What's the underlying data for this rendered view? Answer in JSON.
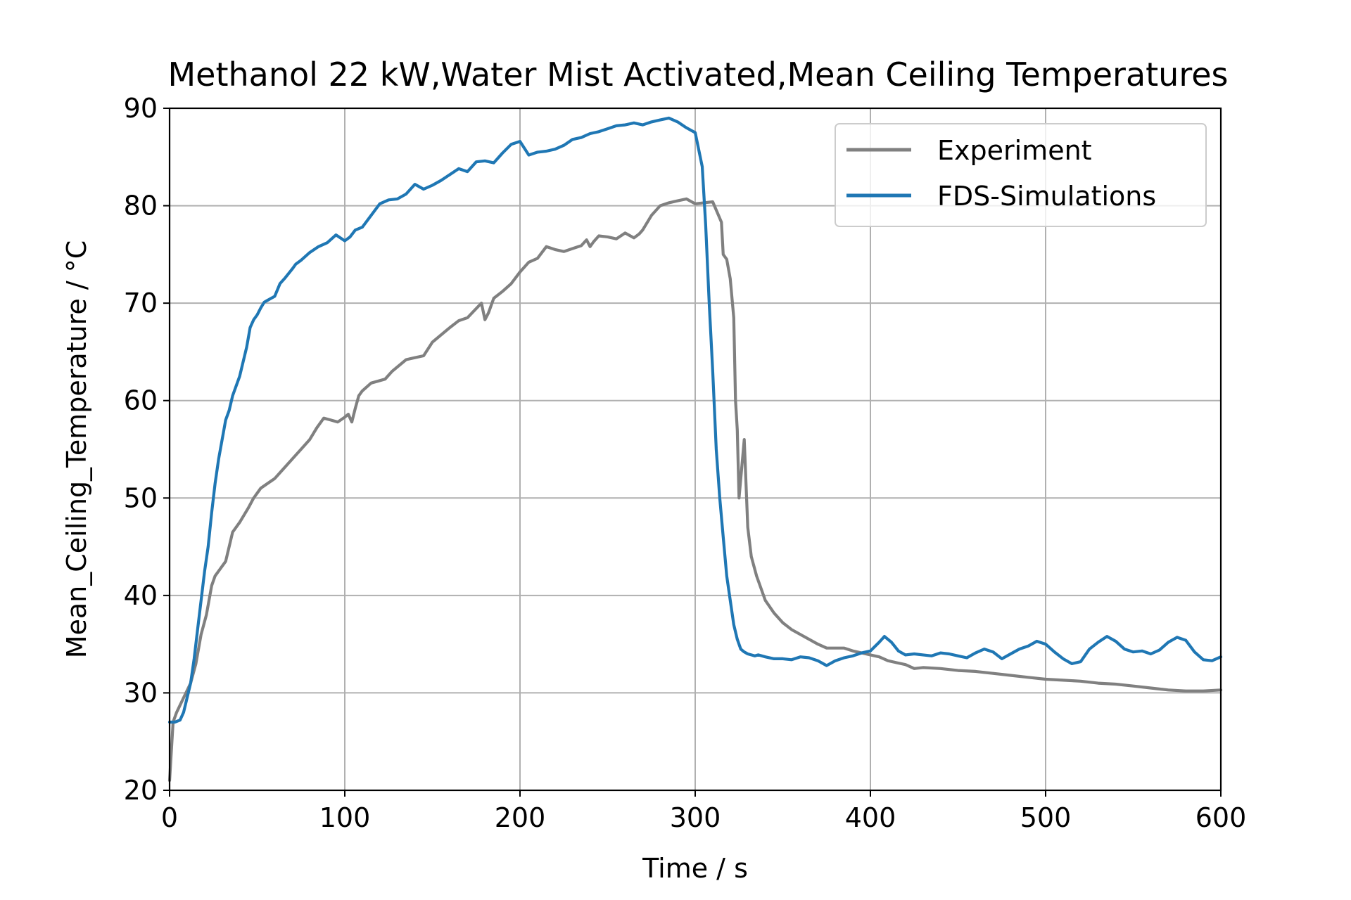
{
  "chart_data": {
    "type": "line",
    "title": "Methanol 22 kW,Water Mist Activated,Mean Ceiling Temperatures",
    "xlabel": "Time / s",
    "ylabel": "Mean_Ceiling_Temperature / °C",
    "xlim": [
      0,
      600
    ],
    "ylim": [
      20,
      90
    ],
    "xticks": [
      0,
      100,
      200,
      300,
      400,
      500,
      600
    ],
    "yticks": [
      20,
      30,
      40,
      50,
      60,
      70,
      80,
      90
    ],
    "xtick_labels": [
      "0",
      "100",
      "200",
      "300",
      "400",
      "500",
      "600"
    ],
    "ytick_labels": [
      "20",
      "30",
      "40",
      "50",
      "60",
      "70",
      "80",
      "90"
    ],
    "grid": true,
    "legend_position": "top-right",
    "series": [
      {
        "name": "Experiment",
        "color": "#808080",
        "x": [
          0,
          2,
          4,
          8,
          12,
          15,
          18,
          21,
          24,
          26,
          28,
          32,
          36,
          40,
          45,
          48,
          52,
          56,
          60,
          65,
          70,
          75,
          80,
          84,
          88,
          92,
          96,
          100,
          102,
          104,
          106,
          108,
          110,
          115,
          123,
          127,
          135,
          140,
          145,
          150,
          160,
          165,
          170,
          178,
          180,
          182,
          185,
          190,
          195,
          200,
          205,
          210,
          215,
          220,
          225,
          230,
          235,
          238,
          240,
          242,
          245,
          250,
          255,
          260,
          265,
          268,
          270,
          275,
          280,
          285,
          290,
          295,
          300,
          305,
          310,
          315,
          316,
          318,
          320,
          322,
          323,
          324,
          325,
          328,
          330,
          332,
          335,
          340,
          345,
          350,
          355,
          360,
          365,
          370,
          375,
          380,
          385,
          390,
          395,
          400,
          405,
          410,
          415,
          420,
          425,
          430,
          440,
          450,
          460,
          470,
          480,
          490,
          500,
          510,
          520,
          530,
          540,
          550,
          560,
          570,
          580,
          590,
          600
        ],
        "y": [
          21,
          27,
          28,
          29.5,
          31,
          33,
          36,
          38,
          41,
          42,
          42.5,
          43.5,
          46.5,
          47.5,
          49,
          50,
          51,
          51.5,
          52,
          53,
          54,
          55,
          56,
          57.2,
          58.2,
          58,
          57.8,
          58.3,
          58.6,
          57.8,
          59.2,
          60.5,
          61,
          61.8,
          62.2,
          63,
          64.2,
          64.4,
          64.6,
          66,
          67.5,
          68.2,
          68.5,
          70,
          68.3,
          69,
          70.5,
          71.2,
          72,
          73.2,
          74.2,
          74.6,
          75.8,
          75.5,
          75.3,
          75.6,
          75.9,
          76.5,
          75.8,
          76.3,
          76.9,
          76.8,
          76.6,
          77.2,
          76.7,
          77.1,
          77.5,
          79,
          80,
          80.3,
          80.5,
          80.7,
          80.2,
          80.3,
          80.4,
          78.3,
          75,
          74.5,
          72.5,
          68.5,
          60,
          57,
          50,
          56,
          47,
          44,
          42,
          39.5,
          38.2,
          37.2,
          36.5,
          36,
          35.5,
          35,
          34.6,
          34.6,
          34.6,
          34.3,
          34.1,
          33.9,
          33.7,
          33.3,
          33.1,
          32.9,
          32.5,
          32.6,
          32.5,
          32.3,
          32.2,
          32,
          31.8,
          31.6,
          31.4,
          31.3,
          31.2,
          31,
          30.9,
          30.7,
          30.5,
          30.3,
          30.2,
          30.2,
          30.3
        ]
      },
      {
        "name": "FDS-Simulations",
        "color": "#1f77b4",
        "x": [
          0,
          3,
          6,
          8,
          10,
          12,
          14,
          16,
          18,
          20,
          22,
          24,
          26,
          28,
          30,
          32,
          34,
          36,
          38,
          40,
          42,
          44,
          46,
          48,
          50,
          52,
          54,
          56,
          58,
          60,
          63,
          66,
          70,
          72,
          75,
          80,
          85,
          90,
          95,
          100,
          103,
          106,
          110,
          115,
          120,
          125,
          130,
          135,
          140,
          145,
          150,
          155,
          160,
          165,
          170,
          175,
          180,
          185,
          190,
          195,
          200,
          205,
          210,
          215,
          220,
          225,
          230,
          235,
          240,
          245,
          250,
          255,
          260,
          265,
          270,
          275,
          280,
          285,
          290,
          295,
          300,
          304,
          306,
          308,
          310,
          312,
          314,
          316,
          318,
          320,
          322,
          324,
          326,
          328,
          330,
          332,
          334,
          336,
          340,
          345,
          350,
          355,
          360,
          365,
          370,
          375,
          380,
          385,
          390,
          395,
          400,
          405,
          408,
          412,
          416,
          420,
          425,
          430,
          435,
          440,
          445,
          450,
          455,
          460,
          465,
          470,
          475,
          480,
          485,
          490,
          495,
          500,
          505,
          510,
          515,
          520,
          525,
          530,
          535,
          540,
          545,
          550,
          555,
          560,
          565,
          570,
          575,
          580,
          585,
          590,
          595,
          600
        ],
        "y": [
          27,
          27,
          27.2,
          28,
          29.5,
          31,
          33.5,
          36.5,
          39.5,
          42.5,
          45,
          48.5,
          51.5,
          54,
          56,
          58,
          59,
          60.5,
          61.5,
          62.5,
          64,
          65.5,
          67.5,
          68.3,
          68.8,
          69.5,
          70.1,
          70.3,
          70.5,
          70.7,
          72,
          72.6,
          73.5,
          74,
          74.4,
          75.2,
          75.8,
          76.2,
          77,
          76.4,
          76.8,
          77.5,
          77.8,
          79,
          80.2,
          80.6,
          80.7,
          81.2,
          82.2,
          81.7,
          82.1,
          82.6,
          83.2,
          83.8,
          83.5,
          84.5,
          84.6,
          84.4,
          85.4,
          86.3,
          86.6,
          85.2,
          85.5,
          85.6,
          85.8,
          86.2,
          86.8,
          87,
          87.4,
          87.6,
          87.9,
          88.2,
          88.3,
          88.5,
          88.3,
          88.6,
          88.8,
          89,
          88.6,
          88,
          87.5,
          84,
          78,
          70,
          63,
          55,
          50,
          46,
          42,
          39.5,
          37,
          35.5,
          34.5,
          34.2,
          34,
          33.9,
          33.8,
          33.9,
          33.7,
          33.5,
          33.5,
          33.4,
          33.7,
          33.6,
          33.3,
          32.8,
          33.3,
          33.6,
          33.8,
          34.1,
          34.3,
          35.2,
          35.8,
          35.2,
          34.3,
          33.9,
          34,
          33.9,
          33.8,
          34.1,
          34,
          33.8,
          33.6,
          34.1,
          34.5,
          34.2,
          33.5,
          34,
          34.5,
          34.8,
          35.3,
          35,
          34.2,
          33.5,
          33,
          33.2,
          34.5,
          35.2,
          35.8,
          35.3,
          34.5,
          34.2,
          34.3,
          34,
          34.4,
          35.2,
          35.7,
          35.4,
          34.2,
          33.4,
          33.3,
          33.7
        ]
      }
    ]
  }
}
